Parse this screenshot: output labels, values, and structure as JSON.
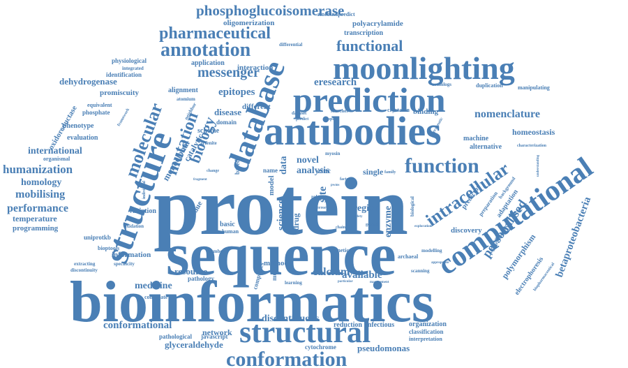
{
  "color": "#4a7fb5",
  "words": {
    "protein": "protein",
    "sequence": "sequence",
    "bioinformatics": "bioinformatics",
    "antibodies": "antibodies",
    "structure": "structure",
    "database": "database",
    "prediction": "prediction",
    "moonlighting": "moonlighting",
    "computational": "computational",
    "structural": "structural",
    "conformation": "conformation",
    "function": "function",
    "annotation": "annotation",
    "pharmaceutical": "pharmaceutical",
    "phosphoglucoisomerase": "phosphoglucoisomerase",
    "intracellular": "intracellular",
    "functional": "functional",
    "messenger": "messenger",
    "molecular": "molecular",
    "mutation": "mutation",
    "biology": "biology",
    "personalised": "personalised",
    "betaproteobacteria": "betaproteobacteria",
    "polymorphism": "polymorphism",
    "humanization": "humanization",
    "mobilising": "mobilising",
    "performance": "performance",
    "homology": "homology",
    "international": "international",
    "dehydrogenase": "dehydrogenase",
    "oligomerization": "oligomerization",
    "polyacrylamide": "polyacrylamide",
    "transcription": "transcription",
    "zincbindpredict": "zincbindpredict",
    "eresearch": "eresearch",
    "nomenclature": "nomenclature",
    "epitopes": "epitopes",
    "alignment": "alignment",
    "promiscuity": "promiscuity",
    "identification": "identification",
    "physiological": "physiological",
    "application": "application",
    "interaction": "interaction",
    "disease": "disease",
    "different": "different",
    "novel": "novel",
    "analysis": "analysis",
    "conformational": "conformational",
    "network": "network",
    "discontinuous": "discontinuous",
    "reduction": "reduction",
    "infectious": "infectious",
    "organization": "organization",
    "classification": "classification",
    "interpretation": "interpretation",
    "glyceraldehyde": "glyceraldehyde",
    "pathological": "pathological",
    "javascript": "javascript",
    "cytochrome": "cytochrome",
    "pseudomonas": "pseudomonas",
    "medicine": "medicine",
    "resource": "resource",
    "pathology": "pathology",
    "conjugate": "conjugate",
    "calcium": "calcium",
    "available": "available",
    "method": "method",
    "information": "information",
    "discovery": "discovery",
    "electrophoresis": "electrophoresis",
    "region": "region",
    "science": "science",
    "drug": "drug",
    "single": "single",
    "zinc": "zinc",
    "data": "data",
    "model": "model",
    "basic": "basic",
    "temperature": "temperature",
    "programming": "programming",
    "uniprotkb": "uniprotkb",
    "bioptools": "bioptools",
    "variation": "variation",
    "homeostasis": "homeostasis",
    "machine": "machine",
    "alternative": "alternative",
    "adaptation": "adaptation",
    "predictor": "predictor",
    "binding": "binding",
    "crystallin": "crystallin",
    "manipulating": "manipulating",
    "duplication": "duplication",
    "orthologs": "orthologs",
    "phenotype": "phenotype",
    "evaluation": "evaluation",
    "phosphate": "phosphate",
    "equivalent": "equivalent",
    "oxidoreductase": "oxidoreductase",
    "organismal": "organismal",
    "monoclonal": "monoclonal",
    "catalytic": "catalytic",
    "scheme": "scheme",
    "domain": "domain",
    "enzyme": "enzyme",
    "archaeal": "archaeal",
    "modelling": "modelling",
    "scanning": "scanning",
    "extracting": "extracting",
    "discontinuity": "discontinuity",
    "specificity": "specificity",
    "oxidation": "oxidation",
    "genetic": "genetic",
    "human": "human",
    "atomium": "atomium",
    "differential": "differential",
    "searches": "searches",
    "psychrotolerant": "psychrotolerant",
    "number": "number",
    "complexes": "complexes",
    "learning": "learning",
    "multiple": "multiple",
    "preparation": "preparation",
    "residue": "residue",
    "biological": "biological",
    "based": "based",
    "name": "name",
    "site": "site",
    "role": "role",
    "factor": "factor",
    "family": "family",
    "gene3d": "gene3d",
    "pwms": "pwms",
    "chain": "chain",
    "safety": "safety",
    "error": "error",
    "myosin": "myosin",
    "dataset": "dataset",
    "predict": "predict",
    "bioplib": "bioplib",
    "arsenite": "arsenite",
    "change": "change",
    "framework": "framework",
    "integrated": "integrated",
    "neighbor": "neighbor",
    "fragment": "fragment",
    "individual": "individual",
    "particular": "particular",
    "management": "management",
    "appropriate": "appropriate",
    "exploration": "exploration",
    "characterization": "characterization",
    "understanding": "understanding",
    "therapeutic": "therapeutic",
    "background": "background",
    "biopharmaceutical": "biopharmaceutical"
  }
}
